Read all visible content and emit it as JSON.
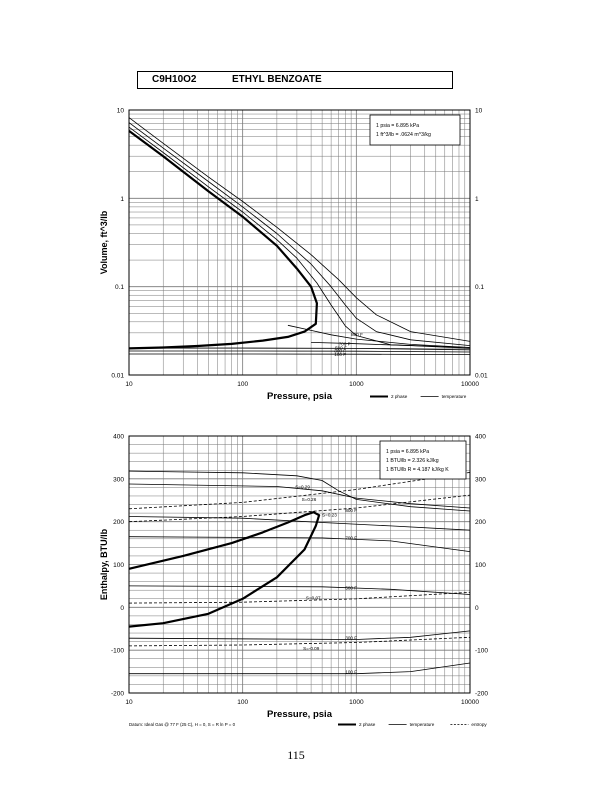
{
  "header": {
    "formula": "C9H10O2",
    "compound": "ETHYL BENZOATE"
  },
  "page_number": "115",
  "colors": {
    "ink": "#000000",
    "grid": "#777777",
    "paper": "#ffffff"
  },
  "chart_data": [
    {
      "type": "line",
      "xscale": "log",
      "yscale": "log",
      "xlim": [
        10,
        10000
      ],
      "ylim": [
        0.01,
        10
      ],
      "xlabel": "Pressure,  psia",
      "ylabel": "Volume, ft^3/lb",
      "xtick_labels": [
        "10",
        "100",
        "1000",
        "10000"
      ],
      "ytick_labels": [
        "0.01",
        "0.1",
        "1",
        "10"
      ],
      "conversion_notes": [
        "1 psia = 6.895 kPa",
        "1 ft^3/lb = .0624 m^3/kg"
      ],
      "legend": [
        "2 phase",
        "temperature"
      ],
      "isotherm_labels": [
        {
          "text": "800 F",
          "x": 900,
          "y": 0.0275
        },
        {
          "text": "700 F",
          "x": 700,
          "y": 0.0215
        },
        {
          "text": "500 F",
          "x": 650,
          "y": 0.0195
        },
        {
          "text": "300 F",
          "x": 640,
          "y": 0.018
        },
        {
          "text": "100 F",
          "x": 640,
          "y": 0.0165
        }
      ],
      "series": [
        {
          "name": "2 phase",
          "style": "thick",
          "points": [
            [
              10,
              5.8
            ],
            [
              20,
              3.0
            ],
            [
              50,
              1.2
            ],
            [
              100,
              0.62
            ],
            [
              200,
              0.29
            ],
            [
              300,
              0.16
            ],
            [
              400,
              0.1
            ],
            [
              450,
              0.065
            ],
            [
              440,
              0.038
            ],
            [
              350,
              0.031
            ],
            [
              250,
              0.027
            ],
            [
              150,
              0.0245
            ],
            [
              80,
              0.0225
            ],
            [
              40,
              0.0213
            ],
            [
              20,
              0.0205
            ],
            [
              10,
              0.02
            ]
          ]
        },
        {
          "name": "",
          "style": "thin",
          "points": [
            [
              10,
              6.4
            ],
            [
              20,
              3.3
            ],
            [
              50,
              1.35
            ],
            [
              100,
              0.7
            ],
            [
              200,
              0.34
            ],
            [
              300,
              0.21
            ],
            [
              450,
              0.11
            ],
            [
              600,
              0.062
            ],
            [
              800,
              0.036
            ],
            [
              1000,
              0.028
            ],
            [
              2000,
              0.022
            ],
            [
              10000,
              0.0205
            ]
          ]
        },
        {
          "name": "",
          "style": "thin",
          "points": [
            [
              10,
              7.2
            ],
            [
              20,
              3.7
            ],
            [
              50,
              1.55
            ],
            [
              100,
              0.8
            ],
            [
              200,
              0.4
            ],
            [
              400,
              0.18
            ],
            [
              600,
              0.1
            ],
            [
              800,
              0.062
            ],
            [
              1000,
              0.044
            ],
            [
              1500,
              0.031
            ],
            [
              3000,
              0.025
            ],
            [
              10000,
              0.0215
            ]
          ]
        },
        {
          "name": "",
          "style": "thin",
          "points": [
            [
              10,
              8.2
            ],
            [
              20,
              4.2
            ],
            [
              50,
              1.75
            ],
            [
              100,
              0.92
            ],
            [
              200,
              0.47
            ],
            [
              400,
              0.23
            ],
            [
              700,
              0.12
            ],
            [
              1000,
              0.075
            ],
            [
              1500,
              0.048
            ],
            [
              3000,
              0.031
            ],
            [
              10000,
              0.024
            ]
          ]
        },
        {
          "name": "",
          "style": "thin",
          "points": [
            [
              250,
              0.0365
            ],
            [
              400,
              0.032
            ],
            [
              600,
              0.0285
            ],
            [
              1000,
              0.0255
            ],
            [
              3000,
              0.0222
            ],
            [
              10000,
              0.0205
            ]
          ]
        },
        {
          "name": "",
          "style": "thin",
          "points": [
            [
              400,
              0.0234
            ],
            [
              1000,
              0.0226
            ],
            [
              3000,
              0.0215
            ],
            [
              10000,
              0.02
            ]
          ]
        },
        {
          "name": "",
          "style": "thin",
          "points": [
            [
              10,
              0.0202
            ],
            [
              100,
              0.0202
            ],
            [
              1000,
              0.02
            ],
            [
              10000,
              0.0193
            ]
          ]
        },
        {
          "name": "",
          "style": "thin",
          "points": [
            [
              10,
              0.0187
            ],
            [
              100,
              0.0187
            ],
            [
              1000,
              0.0186
            ],
            [
              10000,
              0.0182
            ]
          ]
        },
        {
          "name": "",
          "style": "thin",
          "points": [
            [
              10,
              0.0173
            ],
            [
              100,
              0.0173
            ],
            [
              1000,
              0.0172
            ],
            [
              10000,
              0.017
            ]
          ]
        }
      ]
    },
    {
      "type": "line",
      "xscale": "log",
      "xlim": [
        10,
        10000
      ],
      "ylim": [
        -200,
        400
      ],
      "xlabel": "Pressure,  psia",
      "ylabel": "Enthalpy, BTU/lb",
      "xtick_labels": [
        "10",
        "100",
        "1000",
        "10000"
      ],
      "ytick_labels": [
        "-200",
        "-100",
        "0",
        "100",
        "200",
        "300",
        "400"
      ],
      "conversion_notes": [
        "1 psia = 6.895 kPa",
        "1 BTU/lb = 2.326 kJ/kg",
        "1 BTU/lb R = 4.187 kJ/kg K"
      ],
      "footnote": "Datum: Ideal Gas @ 77 F (25 C), H = 0, S = R ln P = 0",
      "legend": [
        "2 phase",
        "temperature",
        "entropy"
      ],
      "entropy_labels": [
        {
          "text": "S=0.29",
          "x": 290,
          "y": 278
        },
        {
          "text": "S=0.26",
          "x": 330,
          "y": 248
        },
        {
          "text": "S=0.23",
          "x": 500,
          "y": 212
        },
        {
          "text": "S=0.07",
          "x": 360,
          "y": 18
        },
        {
          "text": "S=-0.09",
          "x": 340,
          "y": -100
        }
      ],
      "isotherm_labels": [
        {
          "text": "800 F",
          "x": 800,
          "y": 222
        },
        {
          "text": "700 F",
          "x": 800,
          "y": 158
        },
        {
          "text": "500 F",
          "x": 800,
          "y": 42
        },
        {
          "text": "300 F",
          "x": 800,
          "y": -75
        },
        {
          "text": "100 F",
          "x": 800,
          "y": -155
        }
      ],
      "series": [
        {
          "name": "2 phase",
          "style": "thick",
          "points": [
            [
              10,
              90
            ],
            [
              30,
              120
            ],
            [
              80,
              150
            ],
            [
              150,
              175
            ],
            [
              250,
              198
            ],
            [
              350,
              215
            ],
            [
              420,
              222
            ],
            [
              470,
              215
            ],
            [
              440,
              190
            ],
            [
              350,
              135
            ],
            [
              200,
              70
            ],
            [
              100,
              20
            ],
            [
              50,
              -15
            ],
            [
              20,
              -37
            ],
            [
              10,
              -45
            ]
          ]
        },
        {
          "name": "",
          "style": "thin",
          "points": [
            [
              10,
              318
            ],
            [
              100,
              314
            ],
            [
              300,
              307
            ],
            [
              500,
              296
            ],
            [
              700,
              272
            ],
            [
              1000,
              252
            ],
            [
              3000,
              235
            ],
            [
              10000,
              225
            ]
          ]
        },
        {
          "name": "",
          "style": "thin",
          "points": [
            [
              10,
              288
            ],
            [
              200,
              282
            ],
            [
              500,
              272
            ],
            [
              1000,
              255
            ],
            [
              3000,
              242
            ],
            [
              10000,
              232
            ]
          ]
        },
        {
          "name": "",
          "style": "thin",
          "points": [
            [
              10,
              212
            ],
            [
              100,
              208
            ],
            [
              500,
              198
            ],
            [
              2000,
              190
            ],
            [
              10000,
              180
            ]
          ]
        },
        {
          "name": "",
          "style": "thin",
          "points": [
            [
              10,
              165
            ],
            [
              500,
              162
            ],
            [
              2000,
              155
            ],
            [
              10000,
              130
            ]
          ]
        },
        {
          "name": "",
          "style": "thin",
          "points": [
            [
              10,
              50
            ],
            [
              500,
              48
            ],
            [
              2000,
              42
            ],
            [
              10000,
              30
            ]
          ]
        },
        {
          "name": "",
          "style": "thin",
          "points": [
            [
              10,
              -72
            ],
            [
              1000,
              -75
            ],
            [
              3000,
              -70
            ],
            [
              10000,
              -55
            ]
          ]
        },
        {
          "name": "",
          "style": "thin",
          "points": [
            [
              10,
              -155
            ],
            [
              1000,
              -155
            ],
            [
              3000,
              -150
            ],
            [
              10000,
              -130
            ]
          ]
        },
        {
          "name": "",
          "style": "dashed",
          "points": [
            [
              10,
              230
            ],
            [
              100,
              245
            ],
            [
              1000,
              275
            ],
            [
              10000,
              315
            ]
          ]
        },
        {
          "name": "",
          "style": "dashed",
          "points": [
            [
              10,
              200
            ],
            [
              100,
              212
            ],
            [
              1000,
              232
            ],
            [
              10000,
              262
            ]
          ]
        },
        {
          "name": "",
          "style": "dashed",
          "points": [
            [
              10,
              10
            ],
            [
              100,
              12
            ],
            [
              1000,
              20
            ],
            [
              10000,
              35
            ]
          ]
        },
        {
          "name": "",
          "style": "dashed",
          "points": [
            [
              10,
              -90
            ],
            [
              100,
              -88
            ],
            [
              1000,
              -82
            ],
            [
              10000,
              -70
            ]
          ]
        }
      ]
    }
  ]
}
